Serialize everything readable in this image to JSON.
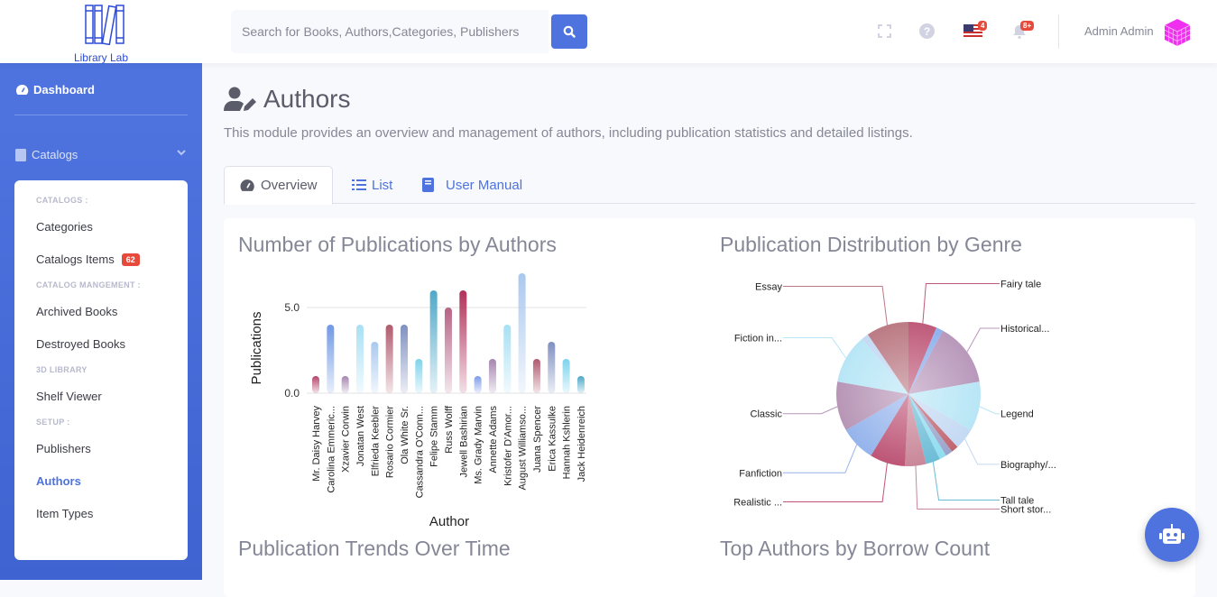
{
  "header": {
    "logo_text": "Library Lab",
    "search_placeholder": "Search for Books, Authors,Categories, Publishers",
    "flag_badge": "4",
    "alerts_badge": "8+",
    "user_name": "Admin Admin"
  },
  "sidebar": {
    "dashboard": "Dashboard",
    "catalogs": "Catalogs",
    "sections": [
      {
        "heading": "CATALOGS :",
        "items": [
          {
            "label": "Categories"
          },
          {
            "label": "Catalogs Items",
            "badge": "62"
          }
        ]
      },
      {
        "heading": "CATALOG MANGEMENT :",
        "items": [
          {
            "label": "Archived Books"
          },
          {
            "label": "Destroyed Books"
          }
        ]
      },
      {
        "heading": "3D LIBRARY",
        "items": [
          {
            "label": "Shelf Viewer"
          }
        ]
      },
      {
        "heading": "SETUP :",
        "items": [
          {
            "label": "Publishers"
          },
          {
            "label": "Authors",
            "active": true
          },
          {
            "label": "Item Types"
          }
        ]
      }
    ]
  },
  "page": {
    "title": "Authors",
    "description": "This module provides an overview and management of authors, including publication statistics and detailed listings.",
    "tabs": [
      {
        "label": "Overview",
        "active": true
      },
      {
        "label": "List"
      },
      {
        "label": "User Manual"
      }
    ]
  },
  "colors": {
    "primary": "#4e73df",
    "badge": "#e74a3b"
  },
  "chart_data": [
    {
      "type": "bar",
      "title": "Number of Publications by Authors",
      "xlabel": "Author",
      "ylabel": "Publications",
      "yticks": [
        "0.0",
        "5.0"
      ],
      "ylim": [
        0,
        7
      ],
      "grid": true,
      "categories": [
        "Mr. Daisy Harvey",
        "Carolina Emmeric...",
        "Xzavier Corwin",
        "Jonatan West",
        "Elfrieda Keebler",
        "Rosario Cormier",
        "Ola White Sr.",
        "Cassandra O'Conn...",
        "Felipe Stamm",
        "Russ Wolff",
        "Jewell Bashirian",
        "Ms. Grady Marvin",
        "Annette Adams",
        "Kristofer D'Amor...",
        "August Williamso...",
        "Juana Spencer",
        "Erica Kassulke",
        "Hannah Kshlerin",
        "Jack Heidenreich"
      ],
      "values": [
        1,
        4,
        1,
        4,
        3,
        4,
        4,
        2,
        6,
        5,
        6,
        1,
        2,
        4,
        7,
        2,
        3,
        2,
        1
      ],
      "colors": [
        "#b5436a",
        "#6f98e6",
        "#a685b0",
        "#a9e0f4",
        "#a9c8ef",
        "#b05a6e",
        "#8090c0",
        "#7dd3ec",
        "#4ea9c9",
        "#b56384",
        "#b0325a",
        "#7d9be6",
        "#a585b0",
        "#a6e0f4",
        "#a9c8ef",
        "#b05a6e",
        "#8090c0",
        "#7dd3ec",
        "#4ea9c9"
      ]
    },
    {
      "type": "pie",
      "title": "Publication Distribution by Genre",
      "labels": [
        "Fairy tale",
        "",
        "Historical...",
        "Legend",
        "Biography/...",
        "",
        "",
        "",
        "Tall tale",
        "Short stor...",
        "Realistic ...",
        "Fanfiction",
        "Classic",
        "Fiction in...",
        "",
        "Essay"
      ],
      "values": [
        4,
        1,
        9,
        7,
        3,
        1,
        1,
        1,
        2,
        3,
        5,
        5,
        7,
        7,
        1,
        6
      ],
      "colors": [
        "#bf5a7a",
        "#8fb2ee",
        "#b898bb",
        "#b8e6f6",
        "#c4d9f3",
        "#c0646e",
        "#9aa5cc",
        "#8fdcf0",
        "#6cbcd6",
        "#c98799",
        "#bd5577",
        "#95b4ec",
        "#b795b6",
        "#b8e6f6",
        "#c4d9f3",
        "#bb7a84"
      ]
    },
    {
      "type": "line",
      "title": "Publication Trends Over Time"
    },
    {
      "type": "bar",
      "title": "Top Authors by Borrow Count"
    }
  ]
}
